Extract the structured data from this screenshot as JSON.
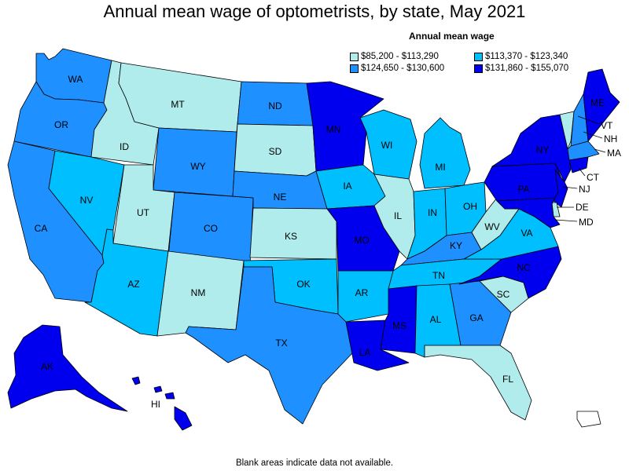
{
  "title": "Annual mean wage of optometrists, by state, May 2021",
  "legend": {
    "title": "Annual mean wage",
    "items": [
      {
        "label": "$85,200 - $113,290",
        "color": "#b0ecec"
      },
      {
        "label": "$113,370 - $123,340",
        "color": "#00bfff"
      },
      {
        "label": "$124,650 - $130,600",
        "color": "#1e90ff"
      },
      {
        "label": "$131,860 - $155,070",
        "color": "#0000ee"
      }
    ]
  },
  "footer": "Blank areas indicate data not available.",
  "states": {
    "WA": {
      "label": "WA",
      "tier": 2
    },
    "OR": {
      "label": "OR",
      "tier": 2
    },
    "CA": {
      "label": "CA",
      "tier": 2
    },
    "ID": {
      "label": "ID",
      "tier": 0
    },
    "NV": {
      "label": "NV",
      "tier": 1
    },
    "MT": {
      "label": "MT",
      "tier": 0
    },
    "WY": {
      "label": "WY",
      "tier": 2
    },
    "UT": {
      "label": "UT",
      "tier": 0
    },
    "AZ": {
      "label": "AZ",
      "tier": 1
    },
    "CO": {
      "label": "CO",
      "tier": 2
    },
    "NM": {
      "label": "NM",
      "tier": 0
    },
    "ND": {
      "label": "ND",
      "tier": 2
    },
    "SD": {
      "label": "SD",
      "tier": 0
    },
    "NE": {
      "label": "NE",
      "tier": 2
    },
    "KS": {
      "label": "KS",
      "tier": 0
    },
    "OK": {
      "label": "OK",
      "tier": 1
    },
    "TX": {
      "label": "TX",
      "tier": 2
    },
    "MN": {
      "label": "MN",
      "tier": 3
    },
    "IA": {
      "label": "IA",
      "tier": 1
    },
    "MO": {
      "label": "MO",
      "tier": 3
    },
    "AR": {
      "label": "AR",
      "tier": 1
    },
    "LA": {
      "label": "LA",
      "tier": 3
    },
    "WI": {
      "label": "WI",
      "tier": 1
    },
    "IL": {
      "label": "IL",
      "tier": 0
    },
    "MI": {
      "label": "MI",
      "tier": 1
    },
    "IN": {
      "label": "IN",
      "tier": 1
    },
    "OH": {
      "label": "OH",
      "tier": 1
    },
    "KY": {
      "label": "KY",
      "tier": 2
    },
    "TN": {
      "label": "TN",
      "tier": 1
    },
    "MS": {
      "label": "MS",
      "tier": 3
    },
    "AL": {
      "label": "AL",
      "tier": 1
    },
    "GA": {
      "label": "GA",
      "tier": 2
    },
    "FL": {
      "label": "FL",
      "tier": 0
    },
    "SC": {
      "label": "SC",
      "tier": 0
    },
    "NC": {
      "label": "NC",
      "tier": 3
    },
    "VA": {
      "label": "VA",
      "tier": 1
    },
    "WV": {
      "label": "WV",
      "tier": 0
    },
    "PA": {
      "label": "PA",
      "tier": 3
    },
    "NY": {
      "label": "NY",
      "tier": 3
    },
    "VT": {
      "label": "VT",
      "tier": 0
    },
    "NH": {
      "label": "NH",
      "tier": 2
    },
    "ME": {
      "label": "ME",
      "tier": 3
    },
    "MA": {
      "label": "MA",
      "tier": 2
    },
    "CT": {
      "label": "CT",
      "tier": 3
    },
    "NJ": {
      "label": "NJ",
      "tier": 3
    },
    "DE": {
      "label": "DE",
      "tier": 0
    },
    "MD": {
      "label": "MD",
      "tier": 3
    },
    "AK": {
      "label": "AK",
      "tier": 3
    },
    "HI": {
      "label": "HI",
      "tier": 3
    },
    "PR": {
      "label": "",
      "tier": -1
    }
  }
}
